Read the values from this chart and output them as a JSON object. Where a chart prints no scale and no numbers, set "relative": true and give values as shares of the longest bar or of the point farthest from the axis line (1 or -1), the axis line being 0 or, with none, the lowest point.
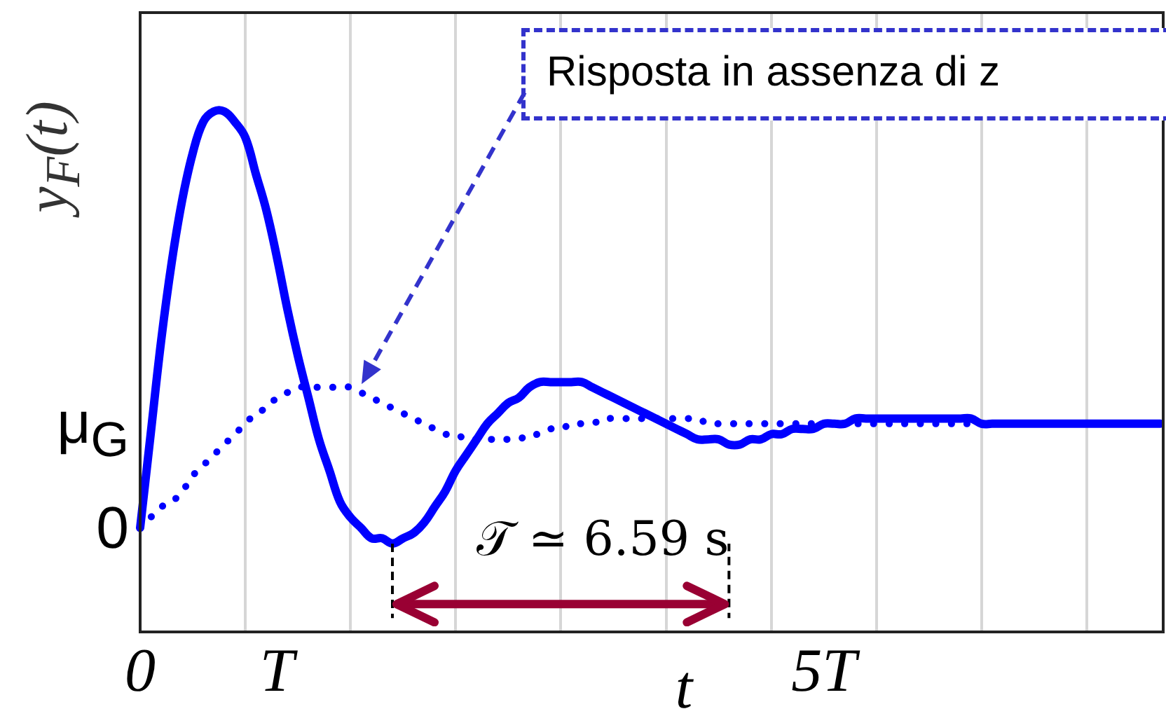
{
  "chart_data": {
    "type": "line",
    "relative": true,
    "ylabel": "y$_{F}$(t)",
    "xlabel": "t",
    "categories": [
      "0",
      null,
      null,
      null,
      null,
      null,
      null,
      null,
      null,
      null,
      null,
      null,
      null,
      "T",
      null,
      null,
      null,
      null,
      null,
      null,
      null,
      null,
      null,
      null,
      null,
      null,
      null,
      null,
      null,
      null,
      null,
      null,
      null,
      null,
      null,
      null,
      null,
      null,
      null,
      null,
      null,
      null,
      null,
      null,
      null,
      null,
      null,
      null,
      null,
      null,
      null,
      null,
      null,
      null,
      null,
      null,
      null,
      null,
      null,
      null,
      null,
      null,
      null,
      null,
      null,
      "5T",
      null,
      null,
      null,
      null,
      null,
      null,
      null,
      null,
      null,
      null,
      null,
      null,
      null,
      null,
      null,
      null,
      null,
      null,
      null,
      null,
      null,
      null,
      null,
      null,
      null,
      null,
      null,
      null,
      null,
      null,
      null,
      null
    ],
    "grid": "x",
    "legend": false,
    "marker": "none",
    "series": [
      {
        "color": "#0000ff",
        "line_style": "solid",
        "values": [
          0.2,
          0.38,
          0.56,
          0.71,
          0.83,
          0.92,
          0.98,
          1,
          1.0,
          0.98,
          0.95,
          0.88,
          0.81,
          0.72,
          0.62,
          0.53,
          0.45,
          0.37,
          0.31,
          0.25,
          0.22,
          0.2,
          0.18,
          0.18,
          0.17,
          0.18,
          0.19,
          0.21,
          0.24,
          0.27,
          0.31,
          0.34,
          0.37,
          0.4,
          0.42,
          0.44,
          0.45,
          0.47,
          0.48,
          0.48,
          0.48,
          0.48,
          0.48,
          0.47,
          0.46,
          0.45,
          0.44,
          0.43,
          0.42,
          0.41,
          0.4,
          0.39,
          0.38,
          0.37,
          0.37,
          0.37,
          0.36,
          0.36,
          0.37,
          0.37,
          0.38,
          0.38,
          0.39,
          0.39,
          0.39,
          0.4,
          0.4,
          0.4,
          0.41,
          0.41,
          0.41,
          0.41,
          0.41,
          0.41,
          0.41,
          0.41,
          0.41,
          0.41,
          0.41,
          0.41,
          0.4,
          0.4,
          0.4,
          0.4,
          0.4,
          0.4,
          0.4,
          0.4,
          0.4,
          0.4,
          0.4,
          0.4,
          0.4,
          0.4,
          0.4,
          0.4,
          0.4,
          0.4
        ]
      },
      {
        "color": "#0000ff",
        "line_style": "dotted",
        "values": [
          0.2,
          0.22,
          0.24,
          0.25,
          0.27,
          0.3,
          0.32,
          0.34,
          0.36,
          0.38,
          0.4,
          0.42,
          0.43,
          0.45,
          0.46,
          0.47,
          0.47,
          0.47,
          0.47,
          0.47,
          0.47,
          0.46,
          0.45,
          0.44,
          0.43,
          0.42,
          0.41,
          0.4,
          0.39,
          0.38,
          0.38,
          0.37,
          0.37,
          0.37,
          0.37,
          0.37,
          0.37,
          0.38,
          0.38,
          0.39,
          0.39,
          0.4,
          0.4,
          0.4,
          0.41,
          0.41,
          0.41,
          0.41,
          0.41,
          0.41,
          0.41,
          0.41,
          0.41,
          0.41,
          0.4,
          0.4,
          0.4,
          0.4,
          0.4,
          0.4,
          0.4,
          0.4,
          0.4,
          0.4,
          0.4,
          0.4,
          0.4,
          0.4,
          0.4,
          0.4,
          0.4,
          0.4,
          0.4,
          0.4,
          0.4,
          0.4,
          0.4,
          0.4,
          0.4,
          0.4,
          0.4,
          0.4,
          0.4,
          0.4,
          0.4,
          0.4,
          0.4,
          0.4,
          0.4,
          0.4,
          0.4,
          0.4,
          0.4,
          0.4,
          0.4,
          0.4,
          0.4,
          0.4
        ]
      }
    ],
    "annotations": [
      "Risposta in assenza di z",
      "𝒯 ≃ 6.59 s",
      "0",
      "μ$_{G}$"
    ]
  }
}
